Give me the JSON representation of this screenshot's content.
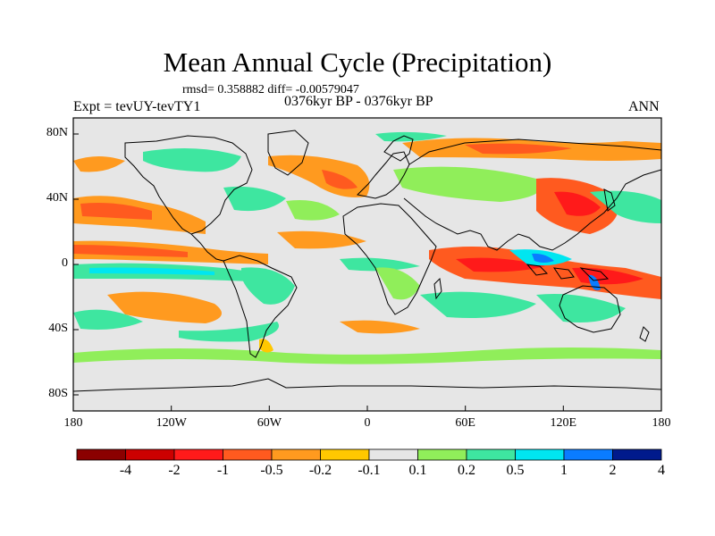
{
  "title": "Mean Annual Cycle (Precipitation)",
  "stats": "rmsd= 0.358882 diff= -0.00579047",
  "expt": "Expt = tevUY-tevTY1",
  "period": "0376kyr BP - 0376kyr BP",
  "season": "ANN",
  "x_ticks": [
    "180",
    "120W",
    "60W",
    "0",
    "60E",
    "120E",
    "180"
  ],
  "y_ticks": [
    "80N",
    "40N",
    "0",
    "40S",
    "80S"
  ],
  "colorbar": {
    "labels": [
      "-4",
      "-2",
      "-1",
      "-0.5",
      "-0.2",
      "-0.1",
      "0.1",
      "0.2",
      "0.5",
      "1",
      "2",
      "4"
    ],
    "colors": [
      "#8b0000",
      "#cc0000",
      "#ff1a1a",
      "#ff5a1f",
      "#ff9a1f",
      "#ffc800",
      "#e6e6e6",
      "#90ee5a",
      "#3ee6a0",
      "#00e6f0",
      "#0a7cff",
      "#001a8c"
    ]
  }
}
